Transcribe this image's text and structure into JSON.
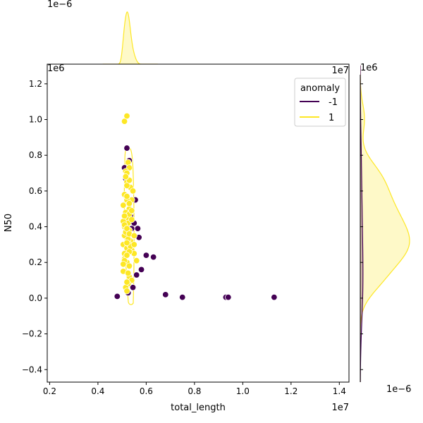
{
  "chart_data": {
    "type": "scatter",
    "subtype": "joint-plot with marginal KDE",
    "xlabel": "total_length",
    "ylabel": "N50",
    "x_offset_text": "1e7",
    "y_offset_text": "1e6",
    "top_marginal_offset_text": "1e−6",
    "right_marginal_offset_text": "1e−6",
    "xlim": [
      0.19,
      1.44
    ],
    "ylim": [
      -0.47,
      1.31
    ],
    "x_ticks": [
      "0.2",
      "0.4",
      "0.6",
      "0.8",
      "1.0",
      "1.2",
      "1.4"
    ],
    "y_ticks": [
      "−0.4",
      "−0.2",
      "0.0",
      "0.2",
      "0.4",
      "0.6",
      "0.8",
      "1.0",
      "1.2"
    ],
    "grid": false,
    "legend": {
      "title": "anomaly",
      "placement": "top-right",
      "entries": [
        {
          "label": "-1",
          "color": "#440154"
        },
        {
          "label": "1",
          "color": "#fde725"
        }
      ]
    },
    "series": [
      {
        "name": "-1",
        "color": "#440154",
        "x": [
          0.48,
          0.51,
          0.515,
          0.52,
          0.525,
          0.53,
          0.535,
          0.54,
          0.545,
          0.55,
          0.555,
          0.56,
          0.565,
          0.57,
          0.58,
          0.6,
          0.63,
          0.68,
          0.75,
          0.93,
          0.94,
          1.13
        ],
        "y": [
          0.01,
          0.73,
          0.67,
          0.84,
          0.03,
          0.77,
          0.46,
          0.39,
          0.06,
          0.42,
          0.55,
          0.13,
          0.39,
          0.34,
          0.16,
          0.24,
          0.23,
          0.02,
          0.005,
          0.005,
          0.005,
          0.005
        ]
      },
      {
        "name": "1",
        "color": "#fde725",
        "x": [
          0.51,
          0.52,
          0.525,
          0.53,
          0.515,
          0.505,
          0.51,
          0.52,
          0.53,
          0.525,
          0.51,
          0.52,
          0.53,
          0.54,
          0.535,
          0.52,
          0.51,
          0.505,
          0.515,
          0.525,
          0.53,
          0.535,
          0.52,
          0.51,
          0.505,
          0.53,
          0.54,
          0.525,
          0.515,
          0.52,
          0.53,
          0.54,
          0.55,
          0.545,
          0.52,
          0.51,
          0.505,
          0.515,
          0.525,
          0.535,
          0.53,
          0.52,
          0.51,
          0.505,
          0.52,
          0.53,
          0.54,
          0.51,
          0.52,
          0.53,
          0.52,
          0.51,
          0.53,
          0.54,
          0.52,
          0.55,
          0.55,
          0.56,
          0.52,
          0.53,
          0.515,
          0.525,
          0.52
        ],
        "y": [
          0.99,
          1.02,
          0.76,
          0.73,
          0.71,
          0.3,
          0.25,
          0.2,
          0.18,
          0.35,
          0.4,
          0.45,
          0.5,
          0.55,
          0.62,
          0.65,
          0.58,
          0.52,
          0.48,
          0.42,
          0.38,
          0.32,
          0.28,
          0.22,
          0.15,
          0.12,
          0.1,
          0.08,
          0.06,
          0.04,
          0.3,
          0.27,
          0.25,
          0.6,
          0.7,
          0.35,
          0.43,
          0.37,
          0.33,
          0.29,
          0.26,
          0.24,
          0.21,
          0.19,
          0.55,
          0.47,
          0.44,
          0.41,
          0.39,
          0.36,
          0.31,
          0.46,
          0.53,
          0.49,
          0.57,
          0.35,
          0.3,
          0.21,
          0.63,
          0.66,
          0.68,
          0.14,
          0.09
        ]
      }
    ]
  }
}
